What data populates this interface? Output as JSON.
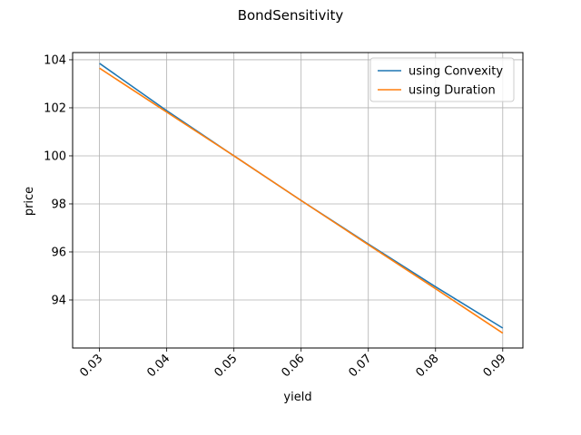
{
  "chart_data": {
    "type": "line",
    "title": "BondSensitivity",
    "xlabel": "yield",
    "ylabel": "price",
    "xlim": [
      0.026,
      0.093
    ],
    "ylim": [
      92.0,
      104.3
    ],
    "x_ticks": [
      0.03,
      0.04,
      0.05,
      0.06,
      0.07,
      0.08,
      0.09
    ],
    "x_tick_labels": [
      "0.03",
      "0.04",
      "0.05",
      "0.06",
      "0.07",
      "0.08",
      "0.09"
    ],
    "y_ticks": [
      94,
      96,
      98,
      100,
      102,
      104
    ],
    "y_tick_labels": [
      "94",
      "96",
      "98",
      "100",
      "102",
      "104"
    ],
    "grid": true,
    "legend_position": "top-right",
    "x": [
      0.03,
      0.04,
      0.05,
      0.06,
      0.07,
      0.08,
      0.09
    ],
    "series": [
      {
        "name": "using Convexity",
        "color": "#1f77b4",
        "values": [
          103.85,
          101.88,
          100.0,
          98.14,
          96.33,
          94.55,
          92.83
        ]
      },
      {
        "name": "using Duration",
        "color": "#ff7f0e",
        "values": [
          103.65,
          101.82,
          100.0,
          98.14,
          96.3,
          94.47,
          92.62
        ]
      }
    ]
  }
}
